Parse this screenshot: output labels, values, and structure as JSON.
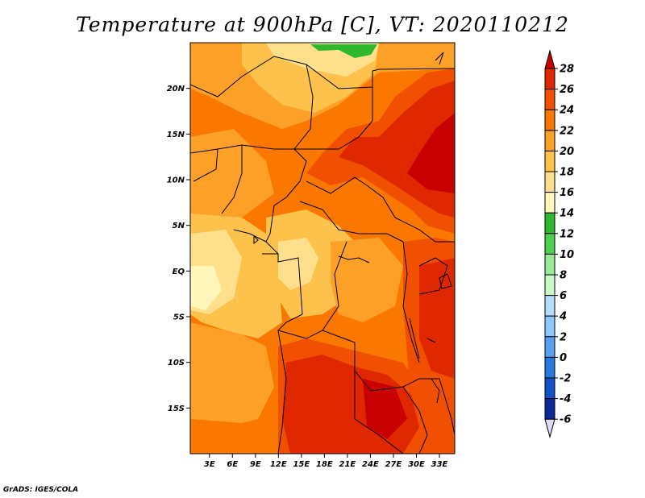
{
  "title": "Temperature at 900hPa [C], VT: 2020110212",
  "credit": "GrADS: IGES/COLA",
  "map": {
    "lat_labels": [
      "20N",
      "15N",
      "10N",
      "5N",
      "EQ",
      "5S",
      "10S",
      "15S"
    ],
    "lat_values": [
      20,
      15,
      10,
      5,
      0,
      -5,
      -10,
      -15
    ],
    "lon_labels": [
      "3E",
      "6E",
      "9E",
      "12E",
      "15E",
      "18E",
      "21E",
      "24E",
      "27E",
      "30E",
      "33E"
    ],
    "lon_values": [
      3,
      6,
      9,
      12,
      15,
      18,
      21,
      24,
      27,
      30,
      33
    ],
    "lon_range": [
      0.5,
      35
    ],
    "lat_range": [
      -20,
      25
    ]
  },
  "colorbar": {
    "labels": [
      "28",
      "26",
      "24",
      "22",
      "20",
      "18",
      "16",
      "14",
      "12",
      "10",
      "8",
      "6",
      "4",
      "2",
      "0",
      "-2",
      "-4",
      "-6"
    ],
    "colors": [
      "#c80000",
      "#e02800",
      "#f05000",
      "#fa7800",
      "#fca028",
      "#fdc24c",
      "#fee08c",
      "#fff6bc",
      "#2eb82e",
      "#50d050",
      "#96eb96",
      "#c8fac8",
      "#b4dcff",
      "#8cc8ff",
      "#5aa0f0",
      "#2878e0",
      "#1450c8",
      "#0a2896",
      "#0a0a64",
      "#dcdcf5"
    ]
  }
}
